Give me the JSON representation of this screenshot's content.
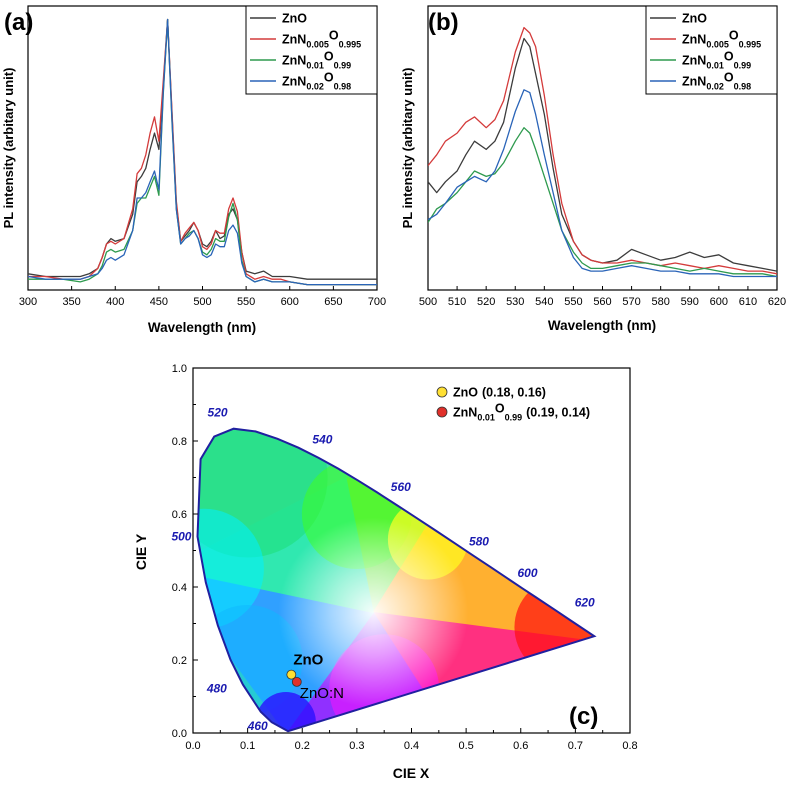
{
  "chart_data": [
    {
      "panel": "(a)",
      "type": "line",
      "xlabel": "Wavelength (nm)",
      "ylabel": "PL intensity (arbitary unit)",
      "xlim": [
        300,
        700
      ],
      "xticks": [
        300,
        350,
        400,
        450,
        500,
        550,
        600,
        650,
        700
      ],
      "ylim": [
        0,
        1.05
      ],
      "series": [
        {
          "name": "ZnO",
          "name_base": "ZnO",
          "sub1": "",
          "o": "",
          "sub2": "",
          "color": "#3c3c3c",
          "x": [
            300,
            320,
            340,
            360,
            370,
            380,
            385,
            390,
            395,
            400,
            410,
            420,
            425,
            430,
            435,
            440,
            445,
            450,
            455,
            460,
            465,
            470,
            475,
            480,
            485,
            490,
            495,
            500,
            505,
            510,
            515,
            520,
            525,
            530,
            535,
            540,
            545,
            550,
            560,
            570,
            580,
            590,
            600,
            620,
            640,
            660,
            680,
            700
          ],
          "y": [
            0.06,
            0.05,
            0.05,
            0.05,
            0.06,
            0.08,
            0.12,
            0.17,
            0.19,
            0.18,
            0.19,
            0.28,
            0.4,
            0.42,
            0.45,
            0.52,
            0.58,
            0.52,
            0.75,
            1.0,
            0.65,
            0.32,
            0.18,
            0.2,
            0.22,
            0.25,
            0.22,
            0.17,
            0.16,
            0.18,
            0.22,
            0.19,
            0.2,
            0.28,
            0.3,
            0.26,
            0.14,
            0.07,
            0.06,
            0.07,
            0.05,
            0.05,
            0.05,
            0.04,
            0.04,
            0.04,
            0.04,
            0.04
          ]
        },
        {
          "name": "ZnN0.005O0.995",
          "name_base": "ZnN",
          "sub1": "0.005",
          "o": "O",
          "sub2": "0.995",
          "color": "#d43b3b",
          "x": [
            300,
            320,
            340,
            360,
            370,
            380,
            385,
            390,
            395,
            400,
            410,
            420,
            425,
            430,
            435,
            440,
            445,
            450,
            455,
            460,
            465,
            470,
            475,
            480,
            485,
            490,
            495,
            500,
            505,
            510,
            515,
            520,
            525,
            530,
            535,
            540,
            545,
            550,
            560,
            570,
            580,
            590,
            600,
            620,
            640,
            660,
            680,
            700
          ],
          "y": [
            0.05,
            0.05,
            0.04,
            0.04,
            0.05,
            0.08,
            0.12,
            0.17,
            0.18,
            0.17,
            0.19,
            0.3,
            0.43,
            0.45,
            0.5,
            0.58,
            0.64,
            0.55,
            0.77,
            1.0,
            0.66,
            0.33,
            0.18,
            0.21,
            0.23,
            0.25,
            0.22,
            0.16,
            0.15,
            0.17,
            0.22,
            0.21,
            0.21,
            0.3,
            0.34,
            0.29,
            0.14,
            0.06,
            0.04,
            0.05,
            0.04,
            0.04,
            0.03,
            0.02,
            0.02,
            0.02,
            0.02,
            0.02
          ]
        },
        {
          "name": "ZnN0.01O0.99",
          "name_base": "ZnN",
          "sub1": "0.01",
          "o": "O",
          "sub2": "0.99",
          "color": "#2e9a4e",
          "x": [
            300,
            320,
            340,
            360,
            370,
            380,
            385,
            390,
            395,
            400,
            410,
            420,
            425,
            430,
            435,
            440,
            445,
            450,
            455,
            460,
            465,
            470,
            475,
            480,
            485,
            490,
            495,
            500,
            505,
            510,
            515,
            520,
            525,
            530,
            535,
            540,
            545,
            550,
            560,
            570,
            580,
            590,
            600,
            620,
            640,
            660,
            680,
            700
          ],
          "y": [
            0.04,
            0.04,
            0.04,
            0.03,
            0.04,
            0.06,
            0.09,
            0.14,
            0.15,
            0.14,
            0.15,
            0.22,
            0.32,
            0.34,
            0.34,
            0.38,
            0.42,
            0.35,
            0.72,
            1.0,
            0.62,
            0.3,
            0.17,
            0.19,
            0.21,
            0.22,
            0.19,
            0.14,
            0.13,
            0.15,
            0.19,
            0.18,
            0.18,
            0.27,
            0.32,
            0.26,
            0.11,
            0.05,
            0.03,
            0.04,
            0.03,
            0.03,
            0.03,
            0.02,
            0.02,
            0.02,
            0.02,
            0.02
          ]
        },
        {
          "name": "ZnN0.02O0.98",
          "name_base": "ZnN",
          "sub1": "0.02",
          "o": "O",
          "sub2": "0.98",
          "color": "#2a64b8",
          "x": [
            300,
            320,
            340,
            360,
            370,
            380,
            385,
            390,
            395,
            400,
            410,
            420,
            425,
            430,
            435,
            440,
            445,
            450,
            455,
            460,
            465,
            470,
            475,
            480,
            485,
            490,
            495,
            500,
            505,
            510,
            515,
            520,
            525,
            530,
            535,
            540,
            545,
            550,
            560,
            570,
            580,
            590,
            600,
            620,
            640,
            660,
            680,
            700
          ],
          "y": [
            0.05,
            0.04,
            0.04,
            0.04,
            0.05,
            0.06,
            0.08,
            0.11,
            0.12,
            0.11,
            0.13,
            0.22,
            0.34,
            0.34,
            0.36,
            0.4,
            0.44,
            0.37,
            0.73,
            1.0,
            0.63,
            0.3,
            0.17,
            0.19,
            0.2,
            0.22,
            0.19,
            0.13,
            0.12,
            0.13,
            0.17,
            0.16,
            0.16,
            0.22,
            0.24,
            0.21,
            0.1,
            0.05,
            0.03,
            0.04,
            0.03,
            0.03,
            0.03,
            0.02,
            0.02,
            0.02,
            0.02,
            0.02
          ]
        }
      ]
    },
    {
      "panel": "(b)",
      "type": "line",
      "xlabel": "Wavelength (nm)",
      "ylabel": "PL intensity (arbitary unit)",
      "xlim": [
        500,
        620
      ],
      "xticks": [
        500,
        510,
        520,
        530,
        540,
        550,
        560,
        570,
        580,
        590,
        600,
        610,
        620
      ],
      "ylim": [
        0,
        1.05
      ],
      "series": [
        {
          "name": "ZnO",
          "name_base": "ZnO",
          "sub1": "",
          "o": "",
          "sub2": "",
          "color": "#3c3c3c",
          "x": [
            500,
            503,
            506,
            510,
            513,
            516,
            520,
            523,
            526,
            530,
            533,
            535,
            537,
            540,
            543,
            546,
            550,
            553,
            556,
            560,
            565,
            570,
            575,
            580,
            585,
            590,
            595,
            600,
            605,
            610,
            615,
            620
          ],
          "y": [
            0.4,
            0.36,
            0.4,
            0.44,
            0.5,
            0.55,
            0.52,
            0.55,
            0.62,
            0.82,
            0.93,
            0.9,
            0.8,
            0.65,
            0.45,
            0.28,
            0.18,
            0.13,
            0.11,
            0.1,
            0.11,
            0.15,
            0.13,
            0.11,
            0.12,
            0.14,
            0.12,
            0.13,
            0.1,
            0.09,
            0.08,
            0.07
          ]
        },
        {
          "name": "ZnN0.005O0.995",
          "name_base": "ZnN",
          "sub1": "0.005",
          "o": "O",
          "sub2": "0.995",
          "color": "#d43b3b",
          "x": [
            500,
            503,
            506,
            510,
            513,
            516,
            520,
            523,
            526,
            530,
            533,
            535,
            537,
            540,
            543,
            546,
            550,
            553,
            556,
            560,
            565,
            570,
            575,
            580,
            585,
            590,
            595,
            600,
            605,
            610,
            615,
            620
          ],
          "y": [
            0.46,
            0.5,
            0.55,
            0.58,
            0.62,
            0.64,
            0.6,
            0.63,
            0.7,
            0.88,
            0.97,
            0.95,
            0.9,
            0.72,
            0.5,
            0.32,
            0.18,
            0.13,
            0.11,
            0.1,
            0.1,
            0.11,
            0.1,
            0.09,
            0.1,
            0.09,
            0.08,
            0.09,
            0.08,
            0.07,
            0.07,
            0.06
          ]
        },
        {
          "name": "ZnN0.01O0.99",
          "name_base": "ZnN",
          "sub1": "0.01",
          "o": "O",
          "sub2": "0.99",
          "color": "#2e9a4e",
          "x": [
            500,
            503,
            506,
            510,
            513,
            516,
            520,
            523,
            526,
            530,
            533,
            535,
            537,
            540,
            543,
            546,
            550,
            553,
            556,
            560,
            565,
            570,
            575,
            580,
            585,
            590,
            595,
            600,
            605,
            610,
            615,
            620
          ],
          "y": [
            0.25,
            0.3,
            0.32,
            0.36,
            0.4,
            0.44,
            0.42,
            0.43,
            0.47,
            0.55,
            0.6,
            0.58,
            0.52,
            0.42,
            0.32,
            0.22,
            0.14,
            0.1,
            0.08,
            0.08,
            0.09,
            0.1,
            0.1,
            0.09,
            0.08,
            0.07,
            0.08,
            0.07,
            0.06,
            0.06,
            0.06,
            0.05
          ]
        },
        {
          "name": "ZnN0.02O0.98",
          "name_base": "ZnN",
          "sub1": "0.02",
          "o": "O",
          "sub2": "0.98",
          "color": "#2a64b8",
          "x": [
            500,
            503,
            506,
            510,
            513,
            516,
            520,
            523,
            526,
            530,
            533,
            535,
            537,
            540,
            543,
            546,
            550,
            553,
            556,
            560,
            565,
            570,
            575,
            580,
            585,
            590,
            595,
            600,
            605,
            610,
            615,
            620
          ],
          "y": [
            0.26,
            0.28,
            0.32,
            0.38,
            0.4,
            0.42,
            0.4,
            0.44,
            0.52,
            0.66,
            0.74,
            0.73,
            0.65,
            0.5,
            0.36,
            0.22,
            0.12,
            0.08,
            0.07,
            0.07,
            0.08,
            0.09,
            0.08,
            0.07,
            0.07,
            0.06,
            0.06,
            0.06,
            0.05,
            0.05,
            0.05,
            0.05
          ]
        }
      ]
    },
    {
      "panel": "(c)",
      "type": "scatter",
      "xlabel": "CIE X",
      "ylabel": "CIE Y",
      "xlim": [
        0,
        0.8
      ],
      "ylim": [
        0,
        1.0
      ],
      "xticks": [
        "0.0",
        "0.1",
        "0.2",
        "0.3",
        "0.4",
        "0.5",
        "0.6",
        "0.7",
        "0.8"
      ],
      "yticks": [
        "0.0",
        "0.2",
        "0.4",
        "0.6",
        "0.8",
        "1.0"
      ],
      "locus": [
        [
          0.1741,
          0.005
        ],
        [
          0.144,
          0.0297
        ],
        [
          0.1241,
          0.0578
        ],
        [
          0.0913,
          0.1327
        ],
        [
          0.0687,
          0.2007
        ],
        [
          0.0454,
          0.295
        ],
        [
          0.0235,
          0.4127
        ],
        [
          0.0082,
          0.5384
        ],
        [
          0.0139,
          0.7502
        ],
        [
          0.0389,
          0.812
        ],
        [
          0.0743,
          0.8338
        ],
        [
          0.1142,
          0.8262
        ],
        [
          0.1547,
          0.8059
        ],
        [
          0.1929,
          0.7816
        ],
        [
          0.2296,
          0.7543
        ],
        [
          0.2658,
          0.7243
        ],
        [
          0.3016,
          0.6923
        ],
        [
          0.3373,
          0.6589
        ],
        [
          0.3731,
          0.6245
        ],
        [
          0.4087,
          0.5896
        ],
        [
          0.4441,
          0.5547
        ],
        [
          0.4788,
          0.5202
        ],
        [
          0.5125,
          0.4866
        ],
        [
          0.5448,
          0.4544
        ],
        [
          0.5752,
          0.4242
        ],
        [
          0.6029,
          0.3965
        ],
        [
          0.627,
          0.3725
        ],
        [
          0.6482,
          0.3514
        ],
        [
          0.6658,
          0.334
        ],
        [
          0.6915,
          0.3083
        ],
        [
          0.7347,
          0.2653
        ]
      ],
      "wavelength_labels": [
        {
          "nm": "460",
          "at": [
            0.1441,
            0.0297
          ]
        },
        {
          "nm": "480",
          "at": [
            0.0913,
            0.1327
          ]
        },
        {
          "nm": "500",
          "at": [
            0.0082,
            0.5384
          ]
        },
        {
          "nm": "520",
          "at": [
            0.0743,
            0.8338
          ]
        },
        {
          "nm": "540",
          "at": [
            0.2296,
            0.7543
          ]
        },
        {
          "nm": "560",
          "at": [
            0.3731,
            0.6245
          ]
        },
        {
          "nm": "580",
          "at": [
            0.5125,
            0.4866
          ]
        },
        {
          "nm": "600",
          "at": [
            0.627,
            0.3725
          ]
        },
        {
          "nm": "620",
          "at": [
            0.6915,
            0.3083
          ]
        }
      ],
      "points": [
        {
          "name": "ZnO",
          "x": 0.18,
          "y": 0.16,
          "color": "#ffe033",
          "annotation": "ZnO",
          "legend_main": "ZnO",
          "legend_sub1": "",
          "legend_o": "",
          "legend_sub2": "",
          "legend_coords": "(0.18, 0.16)"
        },
        {
          "name": "ZnN0.01O0.99",
          "x": 0.19,
          "y": 0.14,
          "color": "#e0302a",
          "annotation": "ZnO:N",
          "legend_main": "ZnN",
          "legend_sub1": "0.01",
          "legend_o": "O",
          "legend_sub2": "0.99",
          "legend_coords": "(0.19, 0.14)"
        }
      ]
    }
  ]
}
